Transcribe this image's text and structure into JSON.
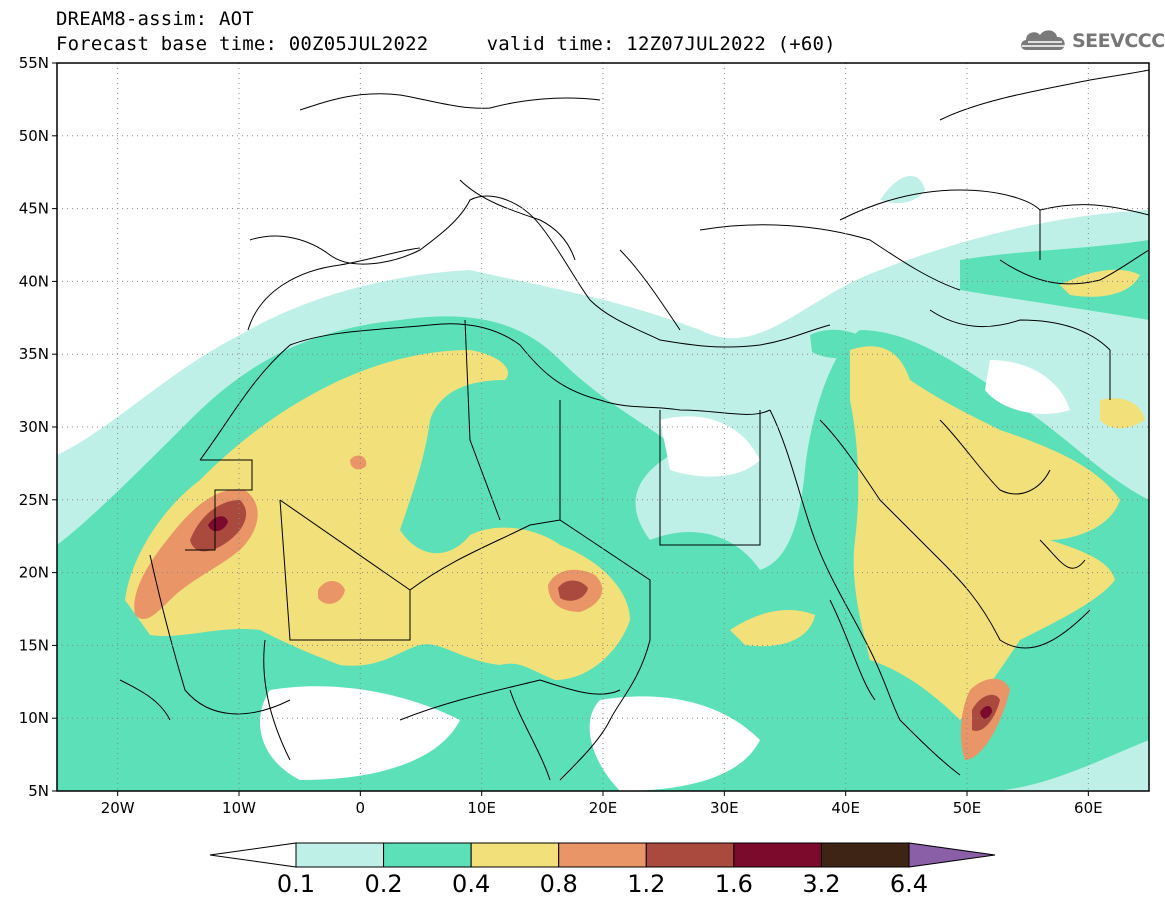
{
  "header": {
    "line1": "DREAM8-assim: AOT",
    "line2": "Forecast base time: 00Z05JUL2022     valid time: 12Z07JUL2022 (+60)"
  },
  "logo": {
    "text": "SEEVCCC",
    "icon": "cloud-icon"
  },
  "map": {
    "lon_range": [
      -25,
      65
    ],
    "lat_range": [
      5,
      55
    ],
    "lat_ticks": [
      "55N",
      "50N",
      "45N",
      "40N",
      "35N",
      "30N",
      "25N",
      "20N",
      "15N",
      "10N",
      "5N"
    ],
    "lon_ticks": [
      "20W",
      "10W",
      "0",
      "10E",
      "20E",
      "30E",
      "40E",
      "50E",
      "60E"
    ],
    "grid": "dotted"
  },
  "colorbar": {
    "labels": [
      "0.1",
      "0.2",
      "0.4",
      "0.8",
      "1.2",
      "1.6",
      "3.2",
      "6.4"
    ],
    "colors": [
      "#ffffff",
      "#bff0e8",
      "#5be0b8",
      "#f2e17a",
      "#e99568",
      "#aa4a3e",
      "#7c0a2c",
      "#3d2414",
      "#8a5fa8"
    ]
  },
  "colors": {
    "c1": "#bff0e8",
    "c2": "#5be0b8",
    "c3": "#f2e17a",
    "c4": "#e99568",
    "c5": "#aa4a3e",
    "c6": "#7c0a2c"
  }
}
